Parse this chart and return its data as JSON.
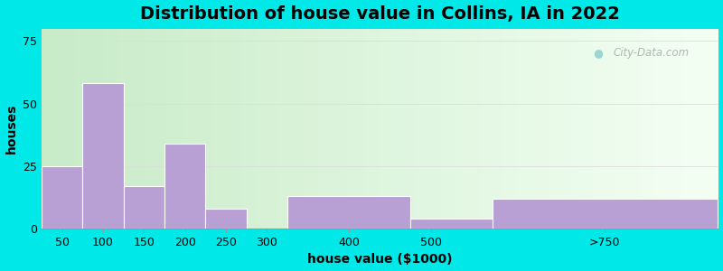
{
  "title": "Distribution of house value in Collins, IA in 2022",
  "xlabel": "house value ($1000)",
  "ylabel": "houses",
  "bar_heights": [
    25,
    58,
    17,
    34,
    8,
    0,
    13,
    4,
    12
  ],
  "bar_left_edges": [
    25,
    75,
    125,
    175,
    225,
    275,
    325,
    475,
    575
  ],
  "bar_right_edges": [
    75,
    125,
    175,
    225,
    275,
    325,
    475,
    575,
    850
  ],
  "bar_color": "#b9a0d4",
  "background_outer": "#00e8e8",
  "yticks": [
    0,
    25,
    50,
    75
  ],
  "xtick_labels": [
    "50",
    "100",
    "150",
    "200",
    "250",
    "300",
    "400",
    "500",
    ">750"
  ],
  "xtick_positions": [
    50,
    100,
    150,
    200,
    250,
    300,
    400,
    500,
    712
  ],
  "ylim": [
    0,
    80
  ],
  "xlim": [
    25,
    850
  ],
  "title_fontsize": 14,
  "axis_label_fontsize": 10,
  "tick_fontsize": 9,
  "watermark_text": "City-Data.com",
  "grid_color": "#dddddd",
  "bg_left_color": "#d4edda",
  "bg_right_color": "#f8ffff"
}
